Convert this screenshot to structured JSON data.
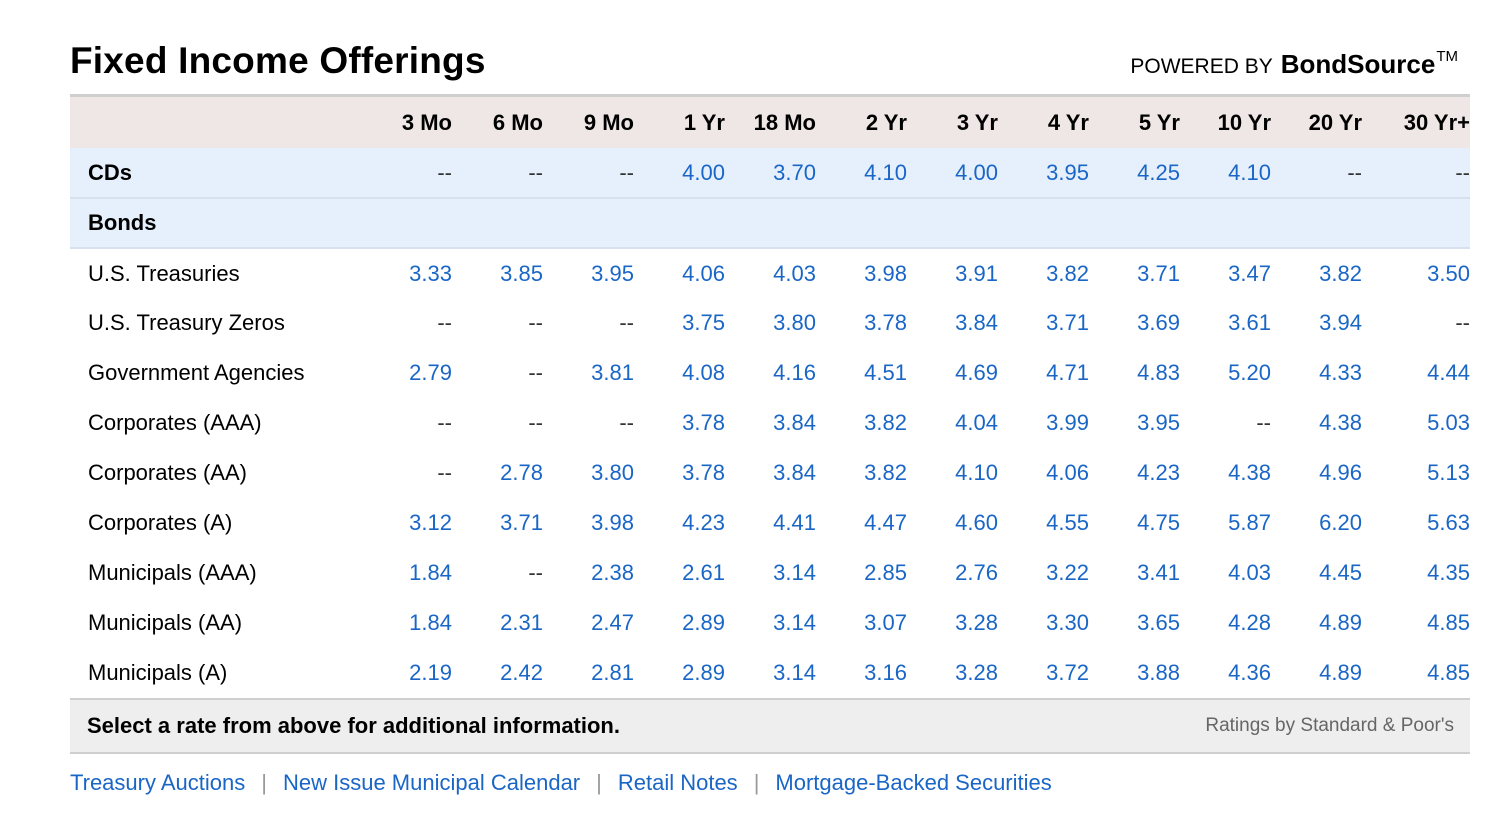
{
  "header": {
    "title": "Fixed Income Offerings",
    "powered_by": "POWERED BY",
    "brand": "BondSource",
    "trademark": "TM"
  },
  "table": {
    "columns": [
      "3 Mo",
      "6 Mo",
      "9 Mo",
      "1 Yr",
      "18 Mo",
      "2 Yr",
      "3 Yr",
      "4 Yr",
      "5 Yr",
      "10 Yr",
      "20 Yr",
      "30 Yr+"
    ],
    "rows": [
      {
        "type": "category",
        "label": "CDs",
        "values": [
          "--",
          "--",
          "--",
          "4.00",
          "3.70",
          "4.10",
          "4.00",
          "3.95",
          "4.25",
          "4.10",
          "--",
          "--"
        ]
      },
      {
        "type": "category",
        "label": "Bonds",
        "values": []
      },
      {
        "type": "data",
        "label": "U.S. Treasuries",
        "values": [
          "3.33",
          "3.85",
          "3.95",
          "4.06",
          "4.03",
          "3.98",
          "3.91",
          "3.82",
          "3.71",
          "3.47",
          "3.82",
          "3.50"
        ]
      },
      {
        "type": "data",
        "label": "U.S. Treasury Zeros",
        "values": [
          "--",
          "--",
          "--",
          "3.75",
          "3.80",
          "3.78",
          "3.84",
          "3.71",
          "3.69",
          "3.61",
          "3.94",
          "--"
        ]
      },
      {
        "type": "data",
        "label": "Government Agencies",
        "values": [
          "2.79",
          "--",
          "3.81",
          "4.08",
          "4.16",
          "4.51",
          "4.69",
          "4.71",
          "4.83",
          "5.20",
          "4.33",
          "4.44"
        ]
      },
      {
        "type": "data",
        "label": "Corporates (AAA)",
        "values": [
          "--",
          "--",
          "--",
          "3.78",
          "3.84",
          "3.82",
          "4.04",
          "3.99",
          "3.95",
          "--",
          "4.38",
          "5.03"
        ]
      },
      {
        "type": "data",
        "label": "Corporates (AA)",
        "values": [
          "--",
          "2.78",
          "3.80",
          "3.78",
          "3.84",
          "3.82",
          "4.10",
          "4.06",
          "4.23",
          "4.38",
          "4.96",
          "5.13"
        ]
      },
      {
        "type": "data",
        "label": "Corporates (A)",
        "values": [
          "3.12",
          "3.71",
          "3.98",
          "4.23",
          "4.41",
          "4.47",
          "4.60",
          "4.55",
          "4.75",
          "5.87",
          "6.20",
          "5.63"
        ]
      },
      {
        "type": "data",
        "label": "Municipals (AAA)",
        "values": [
          "1.84",
          "--",
          "2.38",
          "2.61",
          "3.14",
          "2.85",
          "2.76",
          "3.22",
          "3.41",
          "4.03",
          "4.45",
          "4.35"
        ]
      },
      {
        "type": "data",
        "label": "Municipals (AA)",
        "values": [
          "1.84",
          "2.31",
          "2.47",
          "2.89",
          "3.14",
          "3.07",
          "3.28",
          "3.30",
          "3.65",
          "4.28",
          "4.89",
          "4.85"
        ]
      },
      {
        "type": "data",
        "label": "Municipals (A)",
        "values": [
          "2.19",
          "2.42",
          "2.81",
          "2.89",
          "3.14",
          "3.16",
          "3.28",
          "3.72",
          "3.88",
          "4.36",
          "4.89",
          "4.85"
        ]
      }
    ]
  },
  "footer": {
    "message": "Select a rate from above for additional information.",
    "ratings": "Ratings by Standard & Poor's"
  },
  "links": [
    "Treasury Auctions",
    "New Issue Municipal Calendar",
    "Retail Notes",
    "Mortgage-Backed Securities"
  ],
  "link_separator": "|",
  "colors": {
    "link": "#1a66c6",
    "header_bg": "#efe7e5",
    "category_bg": "#e6f0fc",
    "footer_bg": "#eeeeee"
  }
}
